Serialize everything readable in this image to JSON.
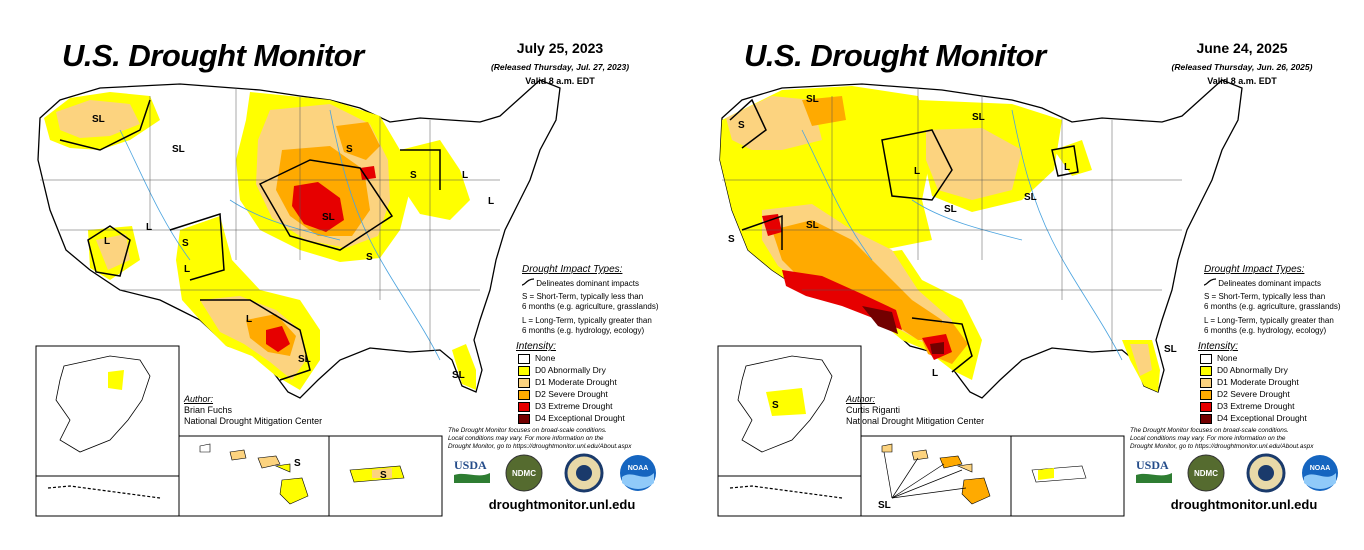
{
  "common": {
    "title": "U.S. Drought Monitor",
    "valid": "Valid 8 a.m. EDT",
    "impact_types_heading": "Drought Impact Types:",
    "impact_delineates": "Delineates dominant impacts",
    "impact_s_line1": "S = Short-Term, typically less than",
    "impact_s_line2": "6 months (e.g. agriculture, grasslands)",
    "impact_l_line1": "L = Long-Term, typically greater than",
    "impact_l_line2": "6 months (e.g. hydrology, ecology)",
    "intensity_heading": "Intensity:",
    "intensity": [
      {
        "label": "None",
        "color": "#ffffff"
      },
      {
        "label": "D0 Abnormally Dry",
        "color": "#ffff00"
      },
      {
        "label": "D1 Moderate Drought",
        "color": "#fcd37f"
      },
      {
        "label": "D2 Severe Drought",
        "color": "#ffaa00"
      },
      {
        "label": "D3 Extreme Drought",
        "color": "#e60000"
      },
      {
        "label": "D4 Exceptional Drought",
        "color": "#730000"
      }
    ],
    "author_heading": "Author:",
    "organization": "National Drought Mitigation Center",
    "disclaimer_1": "The Drought Monitor focuses on broad-scale conditions.",
    "disclaimer_2": "Local conditions may vary. For more information on the",
    "disclaimer_3": "Drought Monitor, go to https://droughtmonitor.unl.edu/About.aspx",
    "url": "droughtmonitor.unl.edu",
    "logos": {
      "usda": "USDA",
      "ndmc": "NDMC",
      "noaa": "NOAA"
    },
    "label_s": "S",
    "label_l": "L",
    "label_sl": "SL"
  },
  "maps": [
    {
      "date": "July 25, 2023",
      "released": "(Released Thursday, Jul. 27, 2023)",
      "author": "Brian Fuchs"
    },
    {
      "date": "June 24, 2025",
      "released": "(Released Thursday, Jun. 26, 2025)",
      "author": "Curtis Riganti"
    }
  ]
}
